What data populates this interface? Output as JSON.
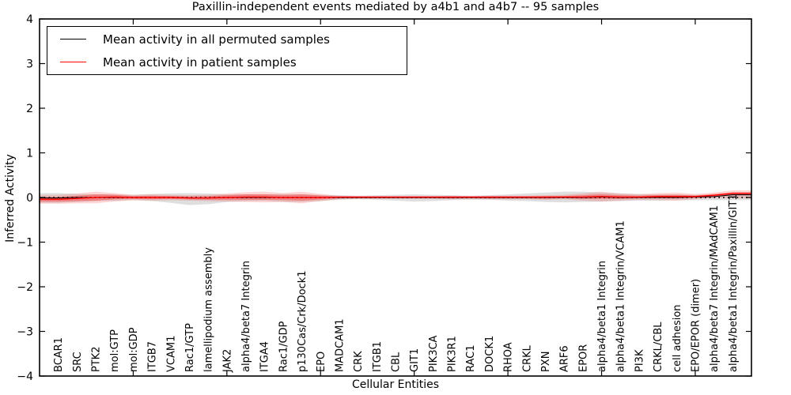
{
  "title": "Paxillin-independent events mediated by a4b1 and a4b7 -- 95 samples",
  "legend": {
    "items": [
      {
        "label": "Mean activity in all permuted samples",
        "color": "#000000"
      },
      {
        "label": "Mean activity in patient samples",
        "color": "#ff0000"
      }
    ]
  },
  "chart_data": {
    "type": "line",
    "title": "Paxillin-independent events mediated by a4b1 and a4b7 -- 95 samples",
    "xlabel": "Cellular Entities",
    "ylabel": "Inferred Activity",
    "ylim": [
      -4,
      4
    ],
    "grid": false,
    "legend_position": "upper left",
    "yticks": [
      {
        "v": 4,
        "label": "4"
      },
      {
        "v": 3,
        "label": "3"
      },
      {
        "v": 2,
        "label": "2"
      },
      {
        "v": 1,
        "label": "1"
      },
      {
        "v": 0,
        "label": "0"
      },
      {
        "v": -1,
        "label": "−1"
      },
      {
        "v": -2,
        "label": "−2"
      },
      {
        "v": -3,
        "label": "−3"
      },
      {
        "v": -4,
        "label": "−4"
      }
    ],
    "x_major_ticks": [
      5,
      10,
      15,
      20,
      25,
      30,
      35
    ],
    "categories": [
      "BCAR1",
      "SRC",
      "PTK2",
      "mol:GTP",
      "mol:GDP",
      "ITGB7",
      "VCAM1",
      "Rac1/GTP",
      "lamellipodium assembly",
      "JAK2",
      "alpha4/beta7 Integrin",
      "ITGA4",
      "Rac1/GDP",
      "p130Cas/Crk/Dock1",
      "EPO",
      "MADCAM1",
      "CRK",
      "ITGB1",
      "CBL",
      "GIT1",
      "PIK3CA",
      "PIK3R1",
      "RAC1",
      "DOCK1",
      "RHOA",
      "CRKL",
      "PXN",
      "ARF6",
      "EPOR",
      "alpha4/beta1 Integrin",
      "alpha4/beta1 Integrin/VCAM1",
      "PI3K",
      "CRKL/CBL",
      "cell adhesion",
      "EPO/EPOR (dimer)",
      "alpha4/beta7 Integrin/MAdCAM1",
      "alpha4/beta1 Integrin/Paxillin/GIT1"
    ],
    "series": [
      {
        "name": "Mean activity in all permuted samples",
        "color": "#000000",
        "width": 1.1,
        "values": [
          -0.01,
          0,
          0,
          0,
          0,
          0,
          0,
          -0.01,
          -0.01,
          0,
          0,
          0,
          0,
          0,
          0,
          0,
          0,
          0,
          0,
          0,
          0,
          0,
          0,
          0,
          0,
          0,
          0,
          0,
          0,
          0.01,
          0,
          0,
          0,
          0,
          0.01,
          0.02,
          0.06
        ]
      },
      {
        "name": "Mean activity in patient samples",
        "color": "#ff0000",
        "width": 1.4,
        "values": [
          -0.04,
          -0.02,
          0.0,
          0.01,
          0.0,
          0.0,
          0.0,
          -0.01,
          -0.01,
          0.0,
          0.01,
          0.01,
          0.0,
          0.0,
          0.0,
          0.01,
          0.01,
          0.01,
          0.01,
          0.01,
          0.01,
          0.01,
          0.01,
          0.01,
          0.01,
          0.01,
          0.01,
          0.01,
          0.01,
          0.02,
          0.01,
          0.01,
          0.02,
          0.02,
          0.02,
          0.05,
          0.09
        ]
      }
    ],
    "bands": [
      {
        "name": "permuted-range",
        "color": "rgba(150,150,150,0.30)",
        "upper": [
          0.1,
          0.08,
          0.07,
          0.07,
          0.06,
          0.08,
          0.09,
          0.1,
          0.09,
          0.07,
          0.07,
          0.07,
          0.08,
          0.07,
          0.06,
          0.05,
          0.04,
          0.05,
          0.06,
          0.07,
          0.06,
          0.05,
          0.04,
          0.05,
          0.07,
          0.09,
          0.11,
          0.13,
          0.13,
          0.11,
          0.09,
          0.08,
          0.07,
          0.07,
          0.06,
          0.06,
          0.06
        ],
        "lower": [
          -0.12,
          -0.1,
          -0.08,
          -0.07,
          -0.06,
          -0.08,
          -0.12,
          -0.17,
          -0.15,
          -0.1,
          -0.08,
          -0.07,
          -0.1,
          -0.1,
          -0.08,
          -0.05,
          -0.04,
          -0.05,
          -0.07,
          -0.09,
          -0.08,
          -0.06,
          -0.05,
          -0.05,
          -0.07,
          -0.08,
          -0.1,
          -0.11,
          -0.1,
          -0.09,
          -0.08,
          -0.07,
          -0.07,
          -0.06,
          -0.06,
          -0.06,
          -0.06
        ]
      },
      {
        "name": "patient-range-outer",
        "color": "rgba(255,25,25,0.18)",
        "upper": [
          0.06,
          0.09,
          0.13,
          0.1,
          0.06,
          0.07,
          0.06,
          0.05,
          0.06,
          0.09,
          0.12,
          0.13,
          0.1,
          0.13,
          0.08,
          0.04,
          0.03,
          0.03,
          0.03,
          0.03,
          0.03,
          0.04,
          0.03,
          0.04,
          0.04,
          0.04,
          0.05,
          0.06,
          0.09,
          0.13,
          0.09,
          0.07,
          0.1,
          0.11,
          0.08,
          0.11,
          0.16
        ],
        "lower": [
          -0.14,
          -0.13,
          -0.13,
          -0.09,
          -0.06,
          -0.07,
          -0.06,
          -0.07,
          -0.08,
          -0.09,
          -0.1,
          -0.11,
          -0.1,
          -0.13,
          -0.08,
          -0.04,
          -0.03,
          -0.03,
          -0.03,
          -0.03,
          -0.03,
          -0.04,
          -0.03,
          -0.04,
          -0.04,
          -0.04,
          -0.05,
          -0.04,
          -0.07,
          -0.09,
          -0.07,
          -0.05,
          -0.06,
          -0.07,
          -0.04,
          -0.01,
          -0.02
        ]
      },
      {
        "name": "patient-range-inner",
        "color": "rgba(255,0,0,0.32)",
        "upper": [
          0.01,
          0.04,
          0.07,
          0.06,
          0.03,
          0.04,
          0.03,
          0.025,
          0.03,
          0.05,
          0.07,
          0.07,
          0.055,
          0.07,
          0.045,
          0.02,
          0.017,
          0.017,
          0.017,
          0.017,
          0.017,
          0.022,
          0.017,
          0.022,
          0.022,
          0.022,
          0.028,
          0.033,
          0.05,
          0.07,
          0.05,
          0.04,
          0.055,
          0.06,
          0.045,
          0.08,
          0.12
        ],
        "lower": [
          -0.09,
          -0.08,
          -0.07,
          -0.04,
          -0.03,
          -0.04,
          -0.03,
          -0.045,
          -0.05,
          -0.05,
          -0.05,
          -0.05,
          -0.055,
          -0.07,
          -0.045,
          -0.02,
          -0.017,
          -0.017,
          -0.017,
          -0.017,
          -0.017,
          -0.022,
          -0.017,
          -0.022,
          -0.022,
          -0.022,
          -0.028,
          -0.013,
          -0.03,
          -0.03,
          -0.03,
          -0.02,
          -0.015,
          -0.02,
          -0.005,
          0.02,
          0.06
        ]
      }
    ],
    "zero_line": 0
  }
}
